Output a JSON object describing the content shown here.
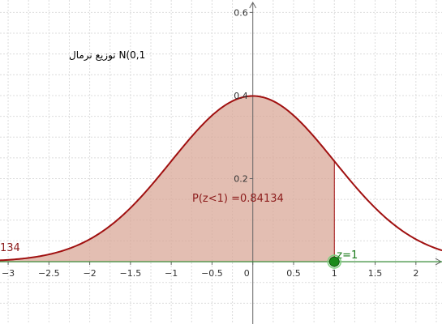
{
  "chart_data": {
    "type": "area",
    "title": "توزيع نرمال N(0,1",
    "curve": {
      "name": "N(0,1)",
      "mean": 0,
      "sd": 1,
      "x": [
        -3.1,
        -3,
        -2.5,
        -2,
        -1.5,
        -1,
        -0.5,
        0,
        0.5,
        1,
        1.5,
        2,
        2.5,
        2.3
      ],
      "y": [
        0.0033,
        0.0044,
        0.0175,
        0.054,
        0.1295,
        0.242,
        0.3521,
        0.3989,
        0.3521,
        0.242,
        0.1295,
        0.054,
        0.0175,
        0.0283
      ]
    },
    "shaded_region": {
      "from": -3.1,
      "to": 1,
      "label": "P(z<1) =0.84134"
    },
    "point": {
      "label": "z=1",
      "x": 1,
      "y": 0
    },
    "left_edge_text": "134",
    "xlim": [
      -3.1,
      2.32
    ],
    "ylim": [
      -0.15,
      0.63
    ],
    "x_ticks": [
      "−3",
      "−2.5",
      "−2",
      "−1.5",
      "−1",
      "−0.5",
      "0",
      "0.5",
      "1",
      "1.5",
      "2"
    ],
    "x_tick_values": [
      -3,
      -2.5,
      -2,
      -1.5,
      -1,
      -0.5,
      0,
      0.5,
      1,
      1.5,
      2
    ],
    "y_ticks": [
      "0.2",
      "0.4",
      "0.6"
    ],
    "y_tick_values": [
      0.2,
      0.4,
      0.6
    ],
    "grid": true,
    "colors": {
      "curve": "#a01010",
      "fill": "#d9a898",
      "point": "#1a8a1a",
      "axis_green": "#2e8b2e",
      "grid": "#dcdcdc",
      "axis": "#666666"
    }
  }
}
